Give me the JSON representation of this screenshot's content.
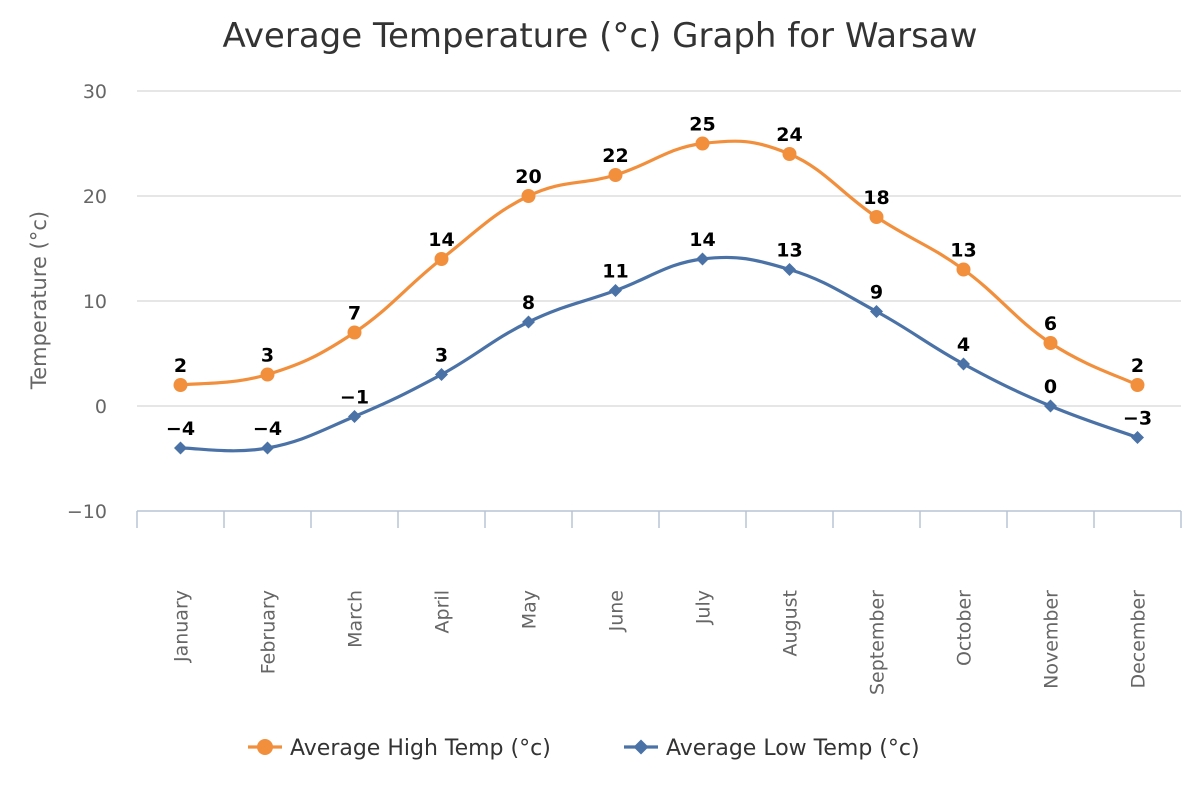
{
  "chart_data": {
    "type": "line",
    "title": "Average Temperature (°c) Graph for Warsaw",
    "xlabel": "",
    "ylabel": "Temperature (°c)",
    "ylim": [
      -10,
      30
    ],
    "yticks": [
      -10,
      0,
      10,
      20,
      30
    ],
    "grid": true,
    "legend_position": "bottom",
    "categories": [
      "January",
      "February",
      "March",
      "April",
      "May",
      "June",
      "July",
      "August",
      "September",
      "October",
      "November",
      "December"
    ],
    "series": [
      {
        "name": "Average High Temp (°c)",
        "color": "#f28f3c",
        "marker": "circle",
        "values": [
          2,
          3,
          7,
          14,
          20,
          22,
          25,
          24,
          18,
          13,
          6,
          2
        ]
      },
      {
        "name": "Average Low Temp (°c)",
        "color": "#4a72a6",
        "marker": "diamond",
        "values": [
          -4,
          -4,
          -1,
          3,
          8,
          11,
          14,
          13,
          9,
          4,
          0,
          -3
        ]
      }
    ]
  }
}
